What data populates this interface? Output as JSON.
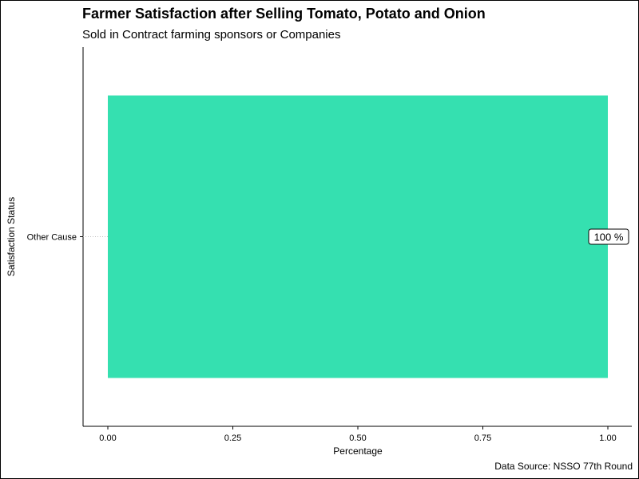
{
  "chart_data": {
    "type": "bar",
    "orientation": "horizontal",
    "title": "Farmer Satisfaction after Selling Tomato, Potato and Onion",
    "subtitle": "Sold in Contract farming sponsors or Companies",
    "caption": "Data Source: NSSO 77th Round",
    "xlabel": "Percentage",
    "ylabel": "Satisfaction Status",
    "categories": [
      "Other Cause"
    ],
    "values": [
      1.0
    ],
    "data_labels": [
      "100 %"
    ],
    "xlim": [
      0,
      1
    ],
    "x_ticks": [
      "0.00",
      "0.25",
      "0.50",
      "0.75",
      "1.00"
    ],
    "grid": false,
    "legend": "none",
    "colors": {
      "bar": "#35e0b0",
      "axis": "#000000"
    }
  }
}
